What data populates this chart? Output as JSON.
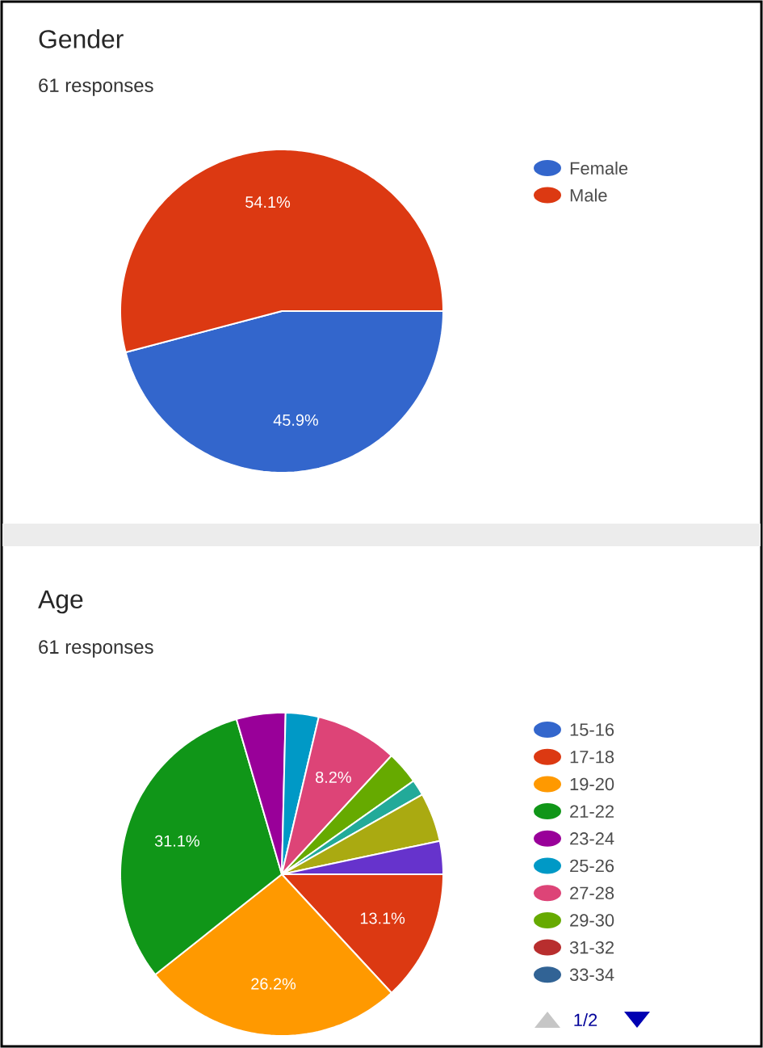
{
  "chart_data": [
    {
      "type": "pie",
      "title": "Gender",
      "subtitle": "61 responses",
      "categories": [
        "Female",
        "Male"
      ],
      "values": [
        45.9,
        54.1
      ],
      "colors": [
        "#3366cc",
        "#dc3912"
      ],
      "value_labels": [
        "45.9%",
        "54.1%"
      ],
      "legend": "right"
    },
    {
      "type": "pie",
      "title": "Age",
      "subtitle": "61 responses",
      "categories": [
        "15-16",
        "17-18",
        "19-20",
        "21-22",
        "23-24",
        "25-26",
        "27-28",
        "29-30",
        "31-32",
        "33-34",
        null,
        null,
        null
      ],
      "values": [
        0,
        13.1,
        26.2,
        31.1,
        4.9,
        3.3,
        8.2,
        3.3,
        0,
        0,
        1.6,
        4.9,
        3.3
      ],
      "colors": [
        "#3366cc",
        "#dc3912",
        "#ff9900",
        "#109618",
        "#990099",
        "#0099c6",
        "#dd4477",
        "#66aa00",
        "#b82e2e",
        "#316395",
        "#22aa99",
        "#aaaa11",
        "#6633cc"
      ],
      "value_labels": [
        null,
        "13.1%",
        "26.2%",
        "31.1%",
        null,
        null,
        "8.2%",
        null,
        null,
        null,
        null,
        null,
        null
      ],
      "legend": "right",
      "annotations": [
        "1/2"
      ]
    }
  ]
}
